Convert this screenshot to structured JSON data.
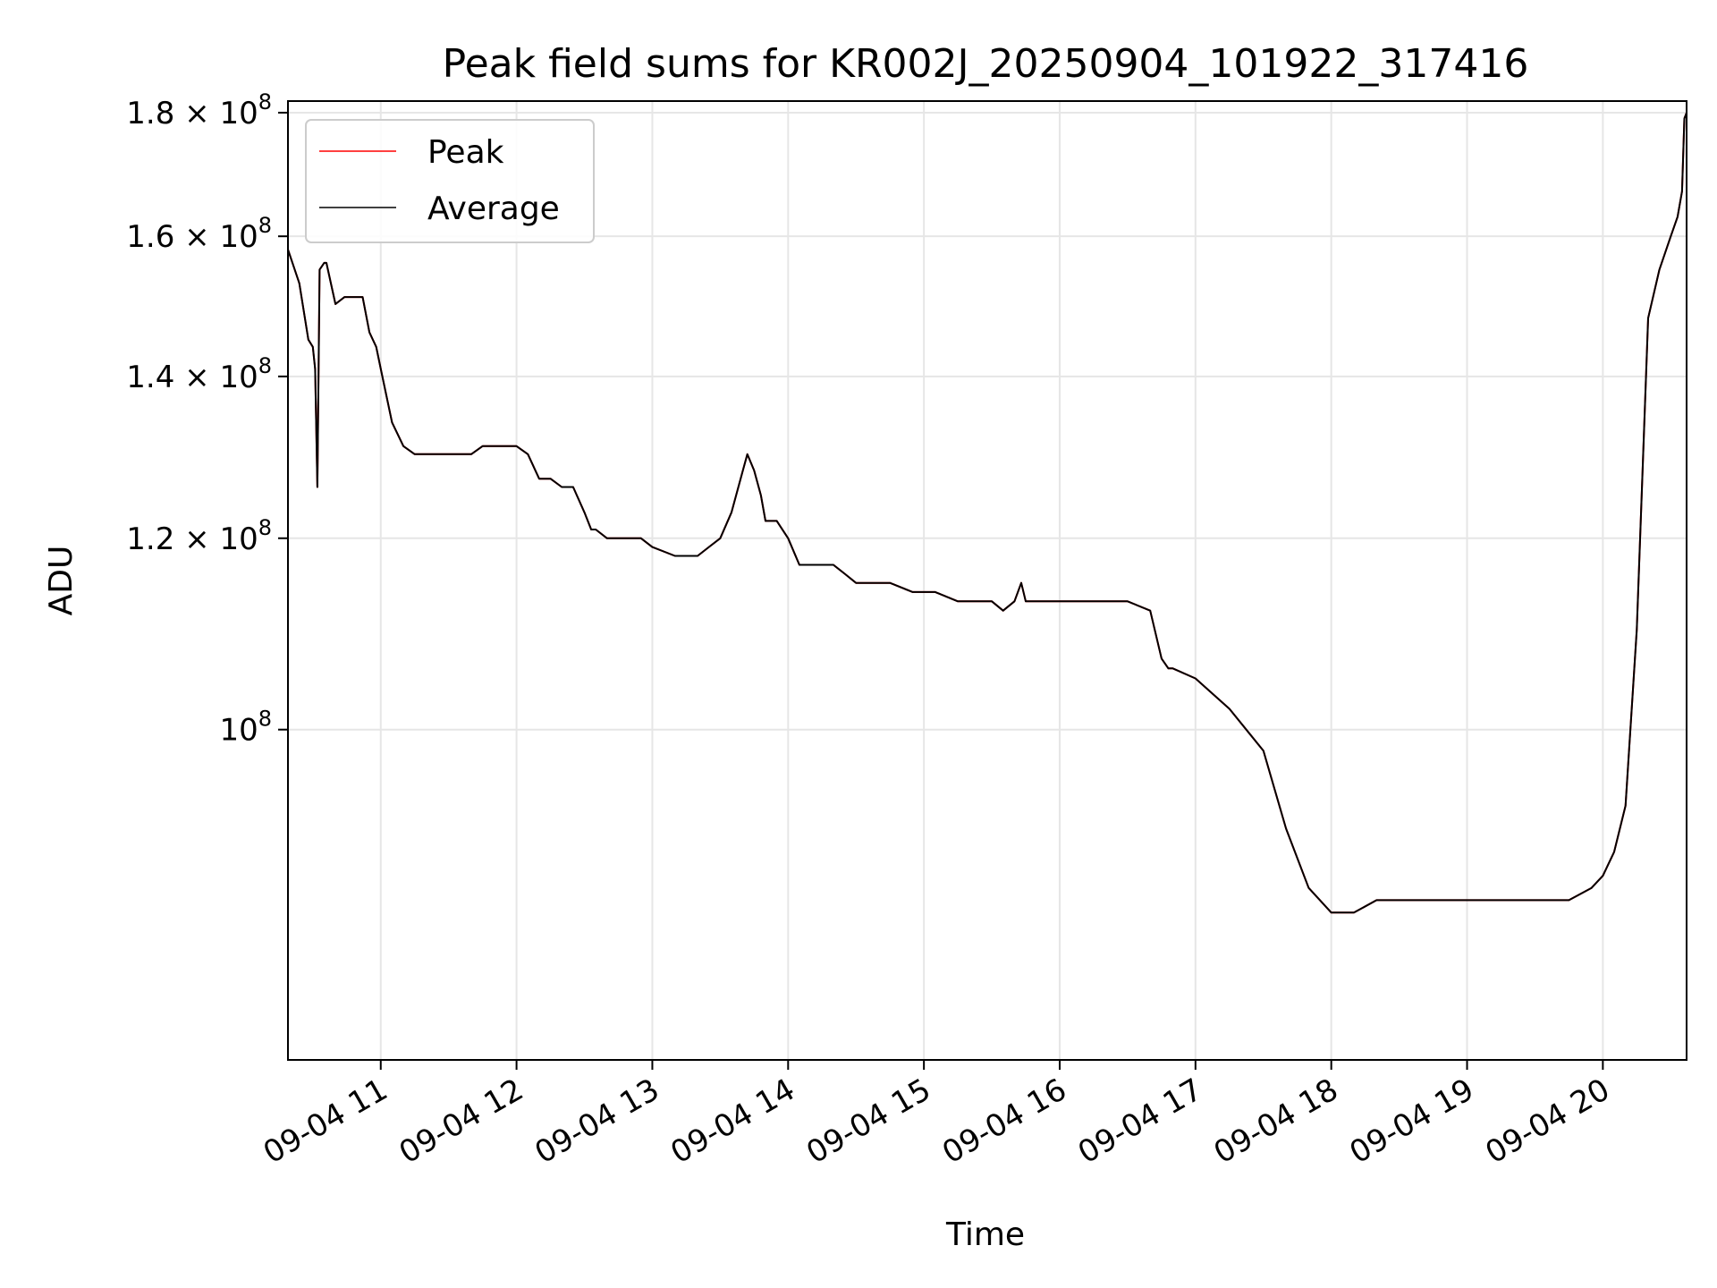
{
  "chart_data": {
    "type": "line",
    "title": "Peak field sums for KR002J_20250904_101922_317416",
    "xlabel": "Time",
    "ylabel": "ADU",
    "yscale": "log",
    "grid": true,
    "legend_position": "upper left",
    "xlim": [
      "09-04 10:19",
      "09-04 20:37"
    ],
    "ylim": [
      73000000,
      182000000
    ],
    "xticks": [
      {
        "value": "09-04 11:00",
        "label": "09-04 11"
      },
      {
        "value": "09-04 12:00",
        "label": "09-04 12"
      },
      {
        "value": "09-04 13:00",
        "label": "09-04 13"
      },
      {
        "value": "09-04 14:00",
        "label": "09-04 14"
      },
      {
        "value": "09-04 15:00",
        "label": "09-04 15"
      },
      {
        "value": "09-04 16:00",
        "label": "09-04 16"
      },
      {
        "value": "09-04 17:00",
        "label": "09-04 17"
      },
      {
        "value": "09-04 18:00",
        "label": "09-04 18"
      },
      {
        "value": "09-04 19:00",
        "label": "09-04 19"
      },
      {
        "value": "09-04 20:00",
        "label": "09-04 20"
      }
    ],
    "yticks": [
      {
        "value": 100000000,
        "mant": "",
        "exp": "8"
      },
      {
        "value": 120000000,
        "mant": "1.2",
        "exp": "8"
      },
      {
        "value": 140000000,
        "mant": "1.4",
        "exp": "8"
      },
      {
        "value": 160000000,
        "mant": "1.6",
        "exp": "8"
      },
      {
        "value": 180000000,
        "mant": "1.8",
        "exp": "8"
      }
    ],
    "x": [
      "10:19",
      "10:24",
      "10:28",
      "10:30",
      "10:31",
      "10:32",
      "10:33",
      "10:35",
      "10:36",
      "10:40",
      "10:44",
      "10:48",
      "10:52",
      "10:55",
      "10:58",
      "11:00",
      "11:05",
      "11:10",
      "11:15",
      "11:20",
      "11:30",
      "11:40",
      "11:45",
      "11:50",
      "11:55",
      "12:00",
      "12:05",
      "12:10",
      "12:15",
      "12:20",
      "12:25",
      "12:30",
      "12:33",
      "12:35",
      "12:40",
      "12:45",
      "12:50",
      "12:55",
      "13:00",
      "13:10",
      "13:15",
      "13:20",
      "13:25",
      "13:30",
      "13:35",
      "13:40",
      "13:42",
      "13:45",
      "13:48",
      "13:50",
      "13:55",
      "14:00",
      "14:05",
      "14:10",
      "14:15",
      "14:20",
      "14:25",
      "14:30",
      "14:45",
      "14:55",
      "15:05",
      "15:15",
      "15:25",
      "15:30",
      "15:35",
      "15:40",
      "15:43",
      "15:45",
      "15:48",
      "15:50",
      "16:00",
      "16:10",
      "16:20",
      "16:30",
      "16:40",
      "16:45",
      "16:48",
      "16:50",
      "17:00",
      "17:15",
      "17:30",
      "17:40",
      "17:50",
      "18:00",
      "18:10",
      "18:20",
      "18:30",
      "18:40",
      "18:50",
      "19:00",
      "19:15",
      "19:30",
      "19:45",
      "19:55",
      "20:00",
      "20:05",
      "20:10",
      "20:15",
      "20:20",
      "20:25",
      "20:30",
      "20:33",
      "20:35",
      "20:36",
      "20:37"
    ],
    "series": [
      {
        "name": "Peak",
        "color": "#ff0000",
        "values": [
          158,
          153,
          145,
          144,
          141,
          126,
          155,
          156,
          156,
          150,
          151,
          151,
          151,
          146,
          144,
          141,
          134,
          131,
          130,
          130,
          130,
          130,
          131,
          131,
          131,
          131,
          130,
          127,
          127,
          126,
          126,
          123,
          121,
          121,
          120,
          120,
          120,
          120,
          119,
          118,
          118,
          118,
          119,
          120,
          123,
          128,
          130,
          128,
          125,
          122,
          122,
          120,
          117,
          117,
          117,
          117,
          116,
          115,
          115,
          114,
          114,
          113,
          113,
          113,
          112,
          113,
          115,
          113,
          113,
          113,
          113,
          113,
          113,
          113,
          112,
          107,
          106,
          106,
          105,
          102,
          98,
          91,
          86,
          84,
          84,
          85,
          85,
          85,
          85,
          85,
          85,
          85,
          85,
          86,
          87,
          89,
          93,
          110,
          148,
          155,
          160,
          163,
          167,
          179,
          180
        ]
      },
      {
        "name": "Average",
        "color": "#000000",
        "values": [
          158,
          153,
          145,
          144,
          141,
          126,
          155,
          156,
          156,
          150,
          151,
          151,
          151,
          146,
          144,
          141,
          134,
          131,
          130,
          130,
          130,
          130,
          131,
          131,
          131,
          131,
          130,
          127,
          127,
          126,
          126,
          123,
          121,
          121,
          120,
          120,
          120,
          120,
          119,
          118,
          118,
          118,
          119,
          120,
          123,
          128,
          130,
          128,
          125,
          122,
          122,
          120,
          117,
          117,
          117,
          117,
          116,
          115,
          115,
          114,
          114,
          113,
          113,
          113,
          112,
          113,
          115,
          113,
          113,
          113,
          113,
          113,
          113,
          113,
          112,
          107,
          106,
          106,
          105,
          102,
          98,
          91,
          86,
          84,
          84,
          85,
          85,
          85,
          85,
          85,
          85,
          85,
          85,
          86,
          87,
          89,
          93,
          110,
          148,
          155,
          160,
          163,
          167,
          179,
          180
        ]
      }
    ],
    "value_unit_multiplier": 1000000
  }
}
